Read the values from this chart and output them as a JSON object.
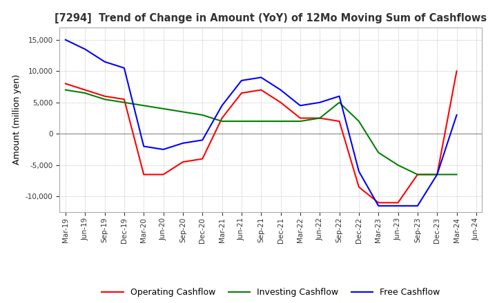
{
  "title": "[7294]  Trend of Change in Amount (YoY) of 12Mo Moving Sum of Cashflows",
  "ylabel": "Amount (million yen)",
  "background_color": "#ffffff",
  "grid_color": "#aaaaaa",
  "x_labels": [
    "Mar-19",
    "Jun-19",
    "Sep-19",
    "Dec-19",
    "Mar-20",
    "Jun-20",
    "Sep-20",
    "Dec-20",
    "Mar-21",
    "Jun-21",
    "Sep-21",
    "Dec-21",
    "Mar-22",
    "Jun-22",
    "Sep-22",
    "Dec-22",
    "Mar-23",
    "Jun-23",
    "Sep-23",
    "Dec-23",
    "Mar-24",
    "Jun-24"
  ],
  "operating": [
    8000,
    7000,
    6000,
    5500,
    -6500,
    -6500,
    -4500,
    -4000,
    2500,
    6500,
    7000,
    5000,
    2500,
    2500,
    2000,
    -8500,
    -11000,
    -11000,
    -6500,
    -6500,
    10000,
    null
  ],
  "investing": [
    7000,
    6500,
    5500,
    5000,
    4500,
    4000,
    3500,
    3000,
    2000,
    2000,
    2000,
    2000,
    2000,
    2500,
    5000,
    2000,
    -3000,
    -5000,
    -6500,
    -6500,
    -6500,
    null
  ],
  "free": [
    15000,
    13500,
    11500,
    10500,
    -2000,
    -2500,
    -1500,
    -1000,
    4500,
    8500,
    9000,
    7000,
    4500,
    5000,
    6000,
    -6000,
    -11500,
    -11500,
    -11500,
    -6500,
    3000,
    null
  ],
  "ylim": [
    -12500,
    17000
  ],
  "yticks": [
    -10000,
    -5000,
    0,
    5000,
    10000,
    15000
  ],
  "colors": {
    "operating": "#ff0000",
    "investing": "#008000",
    "free": "#0000ff"
  },
  "legend_labels": [
    "Operating Cashflow",
    "Investing Cashflow",
    "Free Cashflow"
  ]
}
